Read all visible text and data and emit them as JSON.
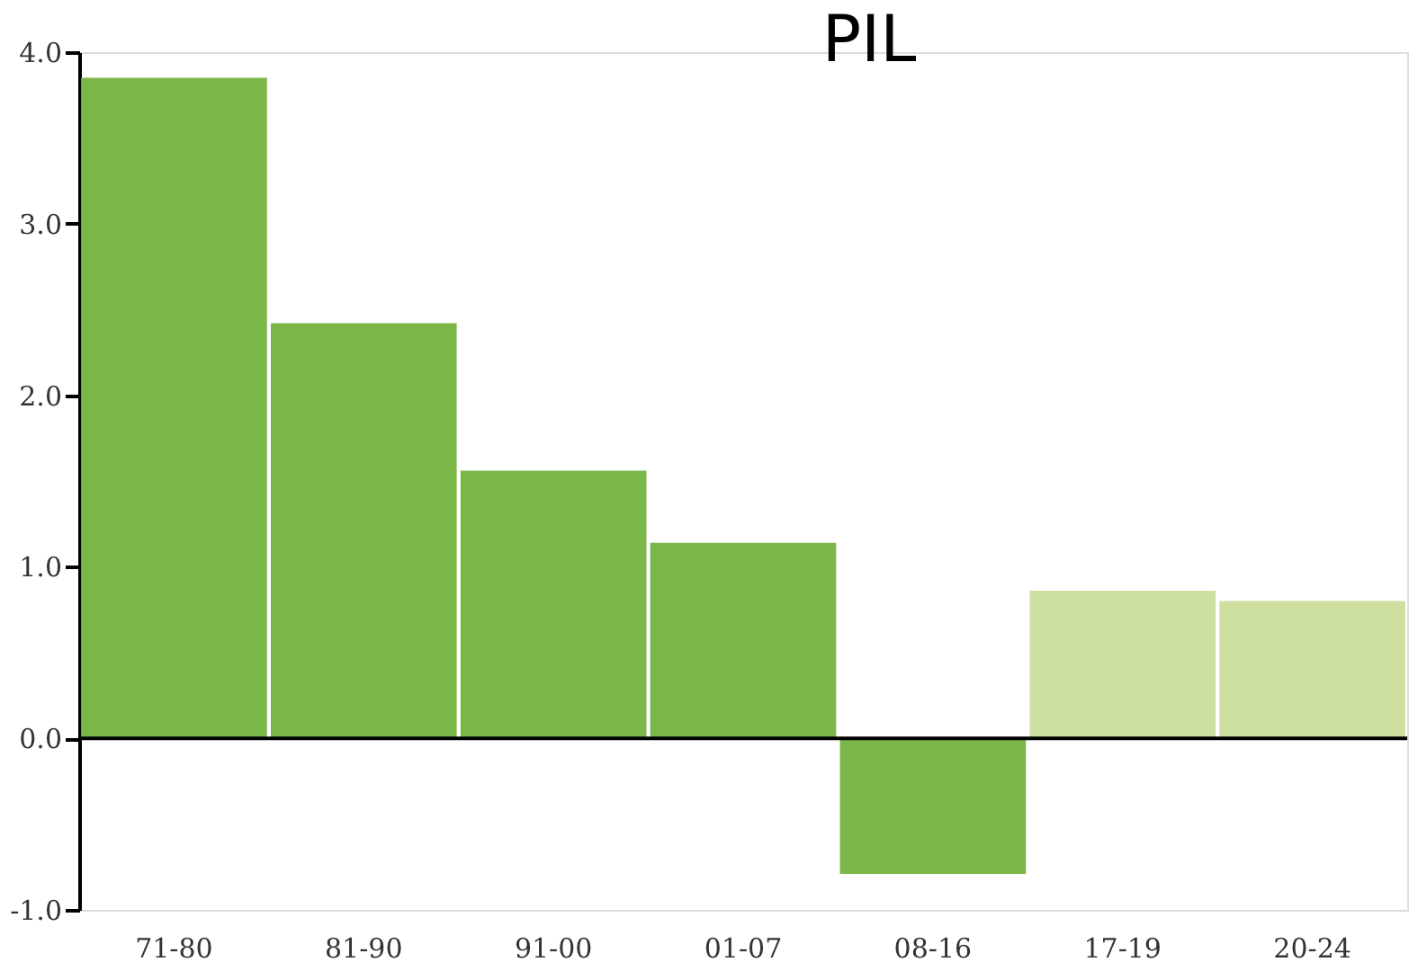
{
  "chart_data": {
    "type": "bar",
    "title": "PIL",
    "categories": [
      "71-80",
      "81-90",
      "91-00",
      "01-07",
      "08-16",
      "17-19",
      "20-24"
    ],
    "values": [
      3.85,
      2.42,
      1.56,
      1.14,
      -0.79,
      0.86,
      0.8
    ],
    "colors": [
      "#7ab648",
      "#7ab648",
      "#7ab648",
      "#7ab648",
      "#7ab648",
      "#cde0a0",
      "#cde0a0"
    ],
    "ylim": [
      -1,
      4
    ],
    "yticks": [
      {
        "value": -1,
        "label": "-1.0"
      },
      {
        "value": 0,
        "label": "0.0"
      },
      {
        "value": 1,
        "label": "1.0"
      },
      {
        "value": 2,
        "label": "2.0"
      },
      {
        "value": 3,
        "label": "3.0"
      },
      {
        "value": 4,
        "label": "4.0"
      }
    ],
    "ref_lines": [
      {
        "axis": "y",
        "value": 0,
        "color": "#000000"
      }
    ],
    "grid": false
  }
}
